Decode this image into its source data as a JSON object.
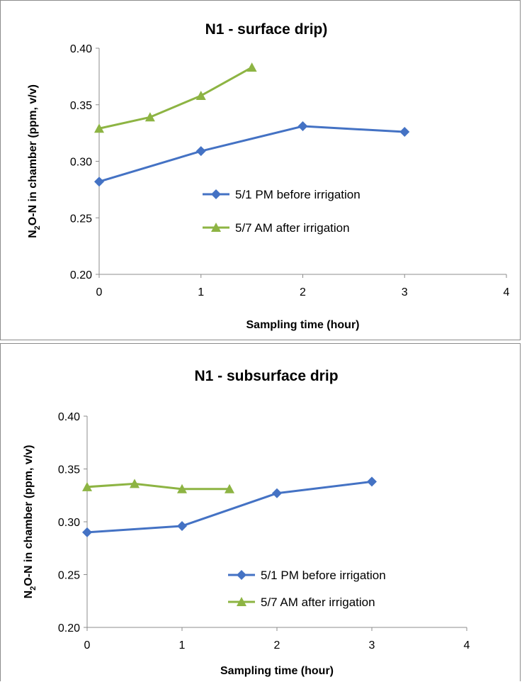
{
  "colors": {
    "blue": "#4472C4",
    "green": "#8DB443"
  },
  "chart_data": [
    {
      "type": "line",
      "title": "N1 - surface drip)",
      "xlabel": "Sampling time (hour)",
      "ylabel_parts": {
        "pre": "N",
        "sub": "2",
        "post": "O-N in chamber (ppm, v/v)"
      },
      "xlim": [
        0,
        4
      ],
      "ylim": [
        0.2,
        0.4
      ],
      "x_ticks": [
        "0",
        "1",
        "2",
        "3",
        "4"
      ],
      "y_ticks": [
        "0.20",
        "0.25",
        "0.30",
        "0.35",
        "0.40"
      ],
      "grid": false,
      "legend_position": "center-right",
      "series": [
        {
          "name": "5/1 PM before irrigation",
          "color": "#4472C4",
          "marker": "diamond",
          "x": [
            0,
            1,
            2,
            3
          ],
          "y": [
            0.282,
            0.309,
            0.331,
            0.326
          ]
        },
        {
          "name": "5/7 AM after irrigation",
          "color": "#8DB443",
          "marker": "triangle",
          "x": [
            0,
            0.5,
            1,
            1.5
          ],
          "y": [
            0.329,
            0.339,
            0.358,
            0.383
          ]
        }
      ]
    },
    {
      "type": "line",
      "title": "N1 - subsurface drip",
      "xlabel": "Sampling time (hour)",
      "ylabel_parts": {
        "pre": "N",
        "sub": "2",
        "post": "O-N in chamber (ppm, v/v)"
      },
      "xlim": [
        0,
        4
      ],
      "ylim": [
        0.2,
        0.4
      ],
      "x_ticks": [
        "0",
        "1",
        "2",
        "3",
        "4"
      ],
      "y_ticks": [
        "0.20",
        "0.25",
        "0.30",
        "0.35",
        "0.40"
      ],
      "grid": false,
      "legend_position": "bottom-right",
      "series": [
        {
          "name": "5/1 PM before irrigation",
          "color": "#4472C4",
          "marker": "diamond",
          "x": [
            0,
            1,
            2,
            3
          ],
          "y": [
            0.29,
            0.296,
            0.327,
            0.338
          ]
        },
        {
          "name": "5/7 AM after irrigation",
          "color": "#8DB443",
          "marker": "triangle",
          "x": [
            0,
            0.5,
            1,
            1.5
          ],
          "y": [
            0.333,
            0.336,
            0.331,
            0.331
          ]
        }
      ]
    }
  ]
}
